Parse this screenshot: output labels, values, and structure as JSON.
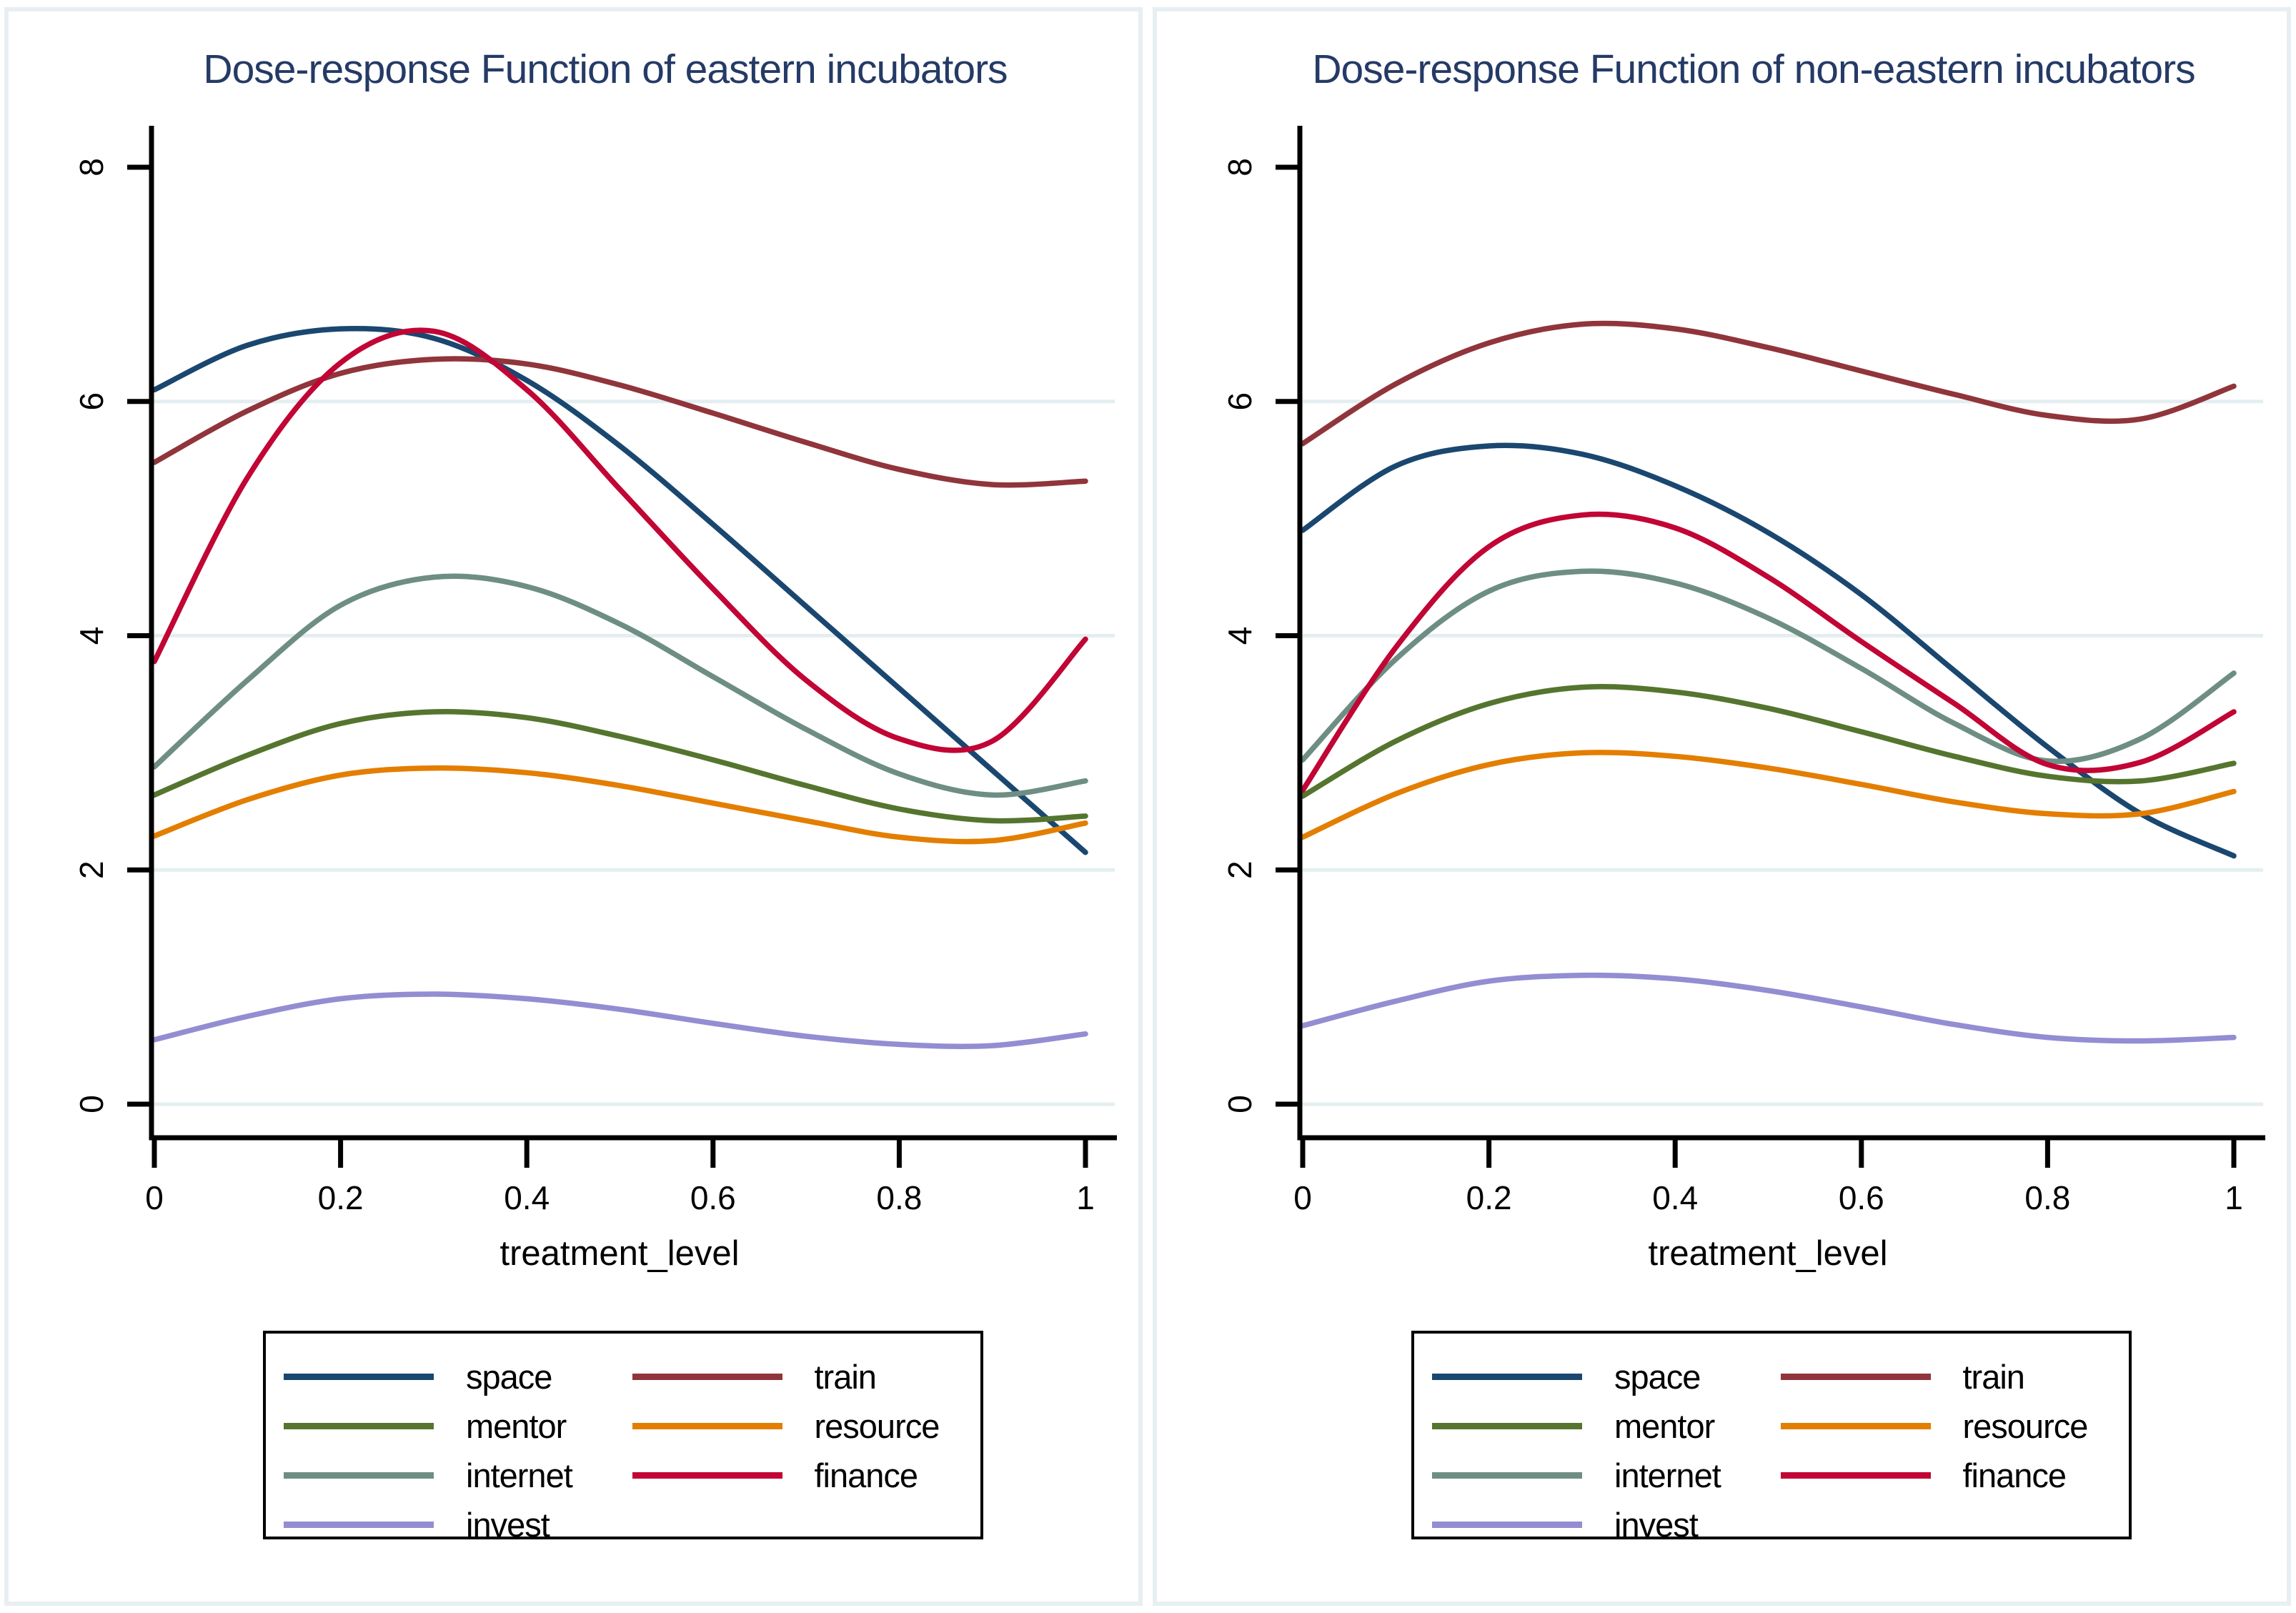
{
  "colors": {
    "title_text": "#253a66",
    "axis": "#000000",
    "gridline": "#e4eef1",
    "panel_border": "#e7eff2",
    "legend_border": "#000000",
    "series": {
      "space": "#1a476f",
      "train": "#90353b",
      "mentor": "#55752f",
      "resource": "#e37e00",
      "internet": "#6e8e84",
      "finance": "#c10534",
      "invest": "#938dd2"
    }
  },
  "chart_data": [
    {
      "type": "line",
      "title": "Dose-response Function of eastern incubators",
      "xlabel": "treatment_level",
      "ylabel": "",
      "xlim": [
        0,
        1
      ],
      "ylim": [
        0,
        8
      ],
      "x_tick_values": [
        0,
        0.2,
        0.4,
        0.6,
        0.8,
        1
      ],
      "x_tick_labels": [
        "0",
        "0.2",
        "0.4",
        "0.6",
        "0.8",
        "1"
      ],
      "y_tick_values": [
        0,
        2,
        4,
        6,
        8
      ],
      "y_tick_labels": [
        "0",
        "2",
        "4",
        "6",
        "8"
      ],
      "grid": "horizontal gridlines at 0,2,4,6",
      "legend_position": "below plot, boxed, two columns",
      "x": [
        0,
        0.1,
        0.2,
        0.3,
        0.4,
        0.5,
        0.6,
        0.7,
        0.8,
        0.9,
        1
      ],
      "series": [
        {
          "name": "space",
          "color": "#1a476f",
          "values": [
            6.1,
            6.48,
            6.62,
            6.54,
            6.18,
            5.62,
            4.95,
            4.25,
            3.55,
            2.85,
            2.15
          ]
        },
        {
          "name": "train",
          "color": "#90353b",
          "values": [
            5.48,
            5.92,
            6.24,
            6.36,
            6.32,
            6.14,
            5.9,
            5.65,
            5.42,
            5.29,
            5.32
          ]
        },
        {
          "name": "mentor",
          "color": "#55752f",
          "values": [
            2.64,
            2.98,
            3.25,
            3.35,
            3.3,
            3.14,
            2.94,
            2.72,
            2.52,
            2.42,
            2.46
          ]
        },
        {
          "name": "resource",
          "color": "#e37e00",
          "values": [
            2.29,
            2.6,
            2.81,
            2.87,
            2.83,
            2.72,
            2.57,
            2.42,
            2.28,
            2.25,
            2.4
          ]
        },
        {
          "name": "internet",
          "color": "#6e8e84",
          "values": [
            2.88,
            3.62,
            4.26,
            4.5,
            4.42,
            4.1,
            3.65,
            3.2,
            2.82,
            2.64,
            2.76
          ]
        },
        {
          "name": "finance",
          "color": "#c10534",
          "values": [
            3.78,
            5.35,
            6.33,
            6.6,
            6.1,
            5.25,
            4.4,
            3.62,
            3.12,
            3.1,
            3.97
          ]
        },
        {
          "name": "invest",
          "color": "#938dd2",
          "values": [
            0.55,
            0.75,
            0.9,
            0.94,
            0.9,
            0.81,
            0.69,
            0.58,
            0.51,
            0.5,
            0.6
          ]
        }
      ],
      "legend_columns": [
        [
          "space",
          "mentor",
          "internet",
          "invest"
        ],
        [
          "train",
          "resource",
          "finance"
        ]
      ]
    },
    {
      "type": "line",
      "title": "Dose-response Function of non-eastern incubators",
      "xlabel": "treatment_level",
      "ylabel": "",
      "xlim": [
        0,
        1
      ],
      "ylim": [
        0,
        8
      ],
      "x_tick_values": [
        0,
        0.2,
        0.4,
        0.6,
        0.8,
        1
      ],
      "x_tick_labels": [
        "0",
        "0.2",
        "0.4",
        "0.6",
        "0.8",
        "1"
      ],
      "y_tick_values": [
        0,
        2,
        4,
        6,
        8
      ],
      "y_tick_labels": [
        "0",
        "2",
        "4",
        "6",
        "8"
      ],
      "grid": "horizontal gridlines at 0,2,4,6",
      "legend_position": "below plot, boxed, two columns",
      "x": [
        0,
        0.1,
        0.2,
        0.3,
        0.4,
        0.5,
        0.6,
        0.7,
        0.8,
        0.9,
        1
      ],
      "series": [
        {
          "name": "space",
          "color": "#1a476f",
          "values": [
            4.9,
            5.45,
            5.62,
            5.55,
            5.28,
            4.88,
            4.35,
            3.7,
            3.05,
            2.48,
            2.12
          ]
        },
        {
          "name": "train",
          "color": "#90353b",
          "values": [
            5.64,
            6.15,
            6.5,
            6.66,
            6.62,
            6.46,
            6.26,
            6.06,
            5.88,
            5.85,
            6.13
          ]
        },
        {
          "name": "mentor",
          "color": "#55752f",
          "values": [
            2.63,
            3.1,
            3.42,
            3.56,
            3.52,
            3.38,
            3.18,
            2.97,
            2.8,
            2.76,
            2.91
          ]
        },
        {
          "name": "resource",
          "color": "#e37e00",
          "values": [
            2.28,
            2.65,
            2.9,
            3.0,
            2.97,
            2.87,
            2.73,
            2.58,
            2.48,
            2.48,
            2.67
          ]
        },
        {
          "name": "internet",
          "color": "#6e8e84",
          "values": [
            2.94,
            3.8,
            4.38,
            4.55,
            4.45,
            4.15,
            3.72,
            3.25,
            2.93,
            3.12,
            3.68
          ]
        },
        {
          "name": "finance",
          "color": "#c10534",
          "values": [
            2.68,
            3.9,
            4.76,
            5.03,
            4.92,
            4.5,
            3.95,
            3.42,
            2.9,
            2.92,
            3.35
          ]
        },
        {
          "name": "invest",
          "color": "#938dd2",
          "values": [
            0.67,
            0.88,
            1.05,
            1.1,
            1.07,
            0.97,
            0.83,
            0.68,
            0.57,
            0.54,
            0.57
          ]
        }
      ],
      "legend_columns": [
        [
          "space",
          "mentor",
          "internet",
          "invest"
        ],
        [
          "train",
          "resource",
          "finance"
        ]
      ]
    }
  ]
}
